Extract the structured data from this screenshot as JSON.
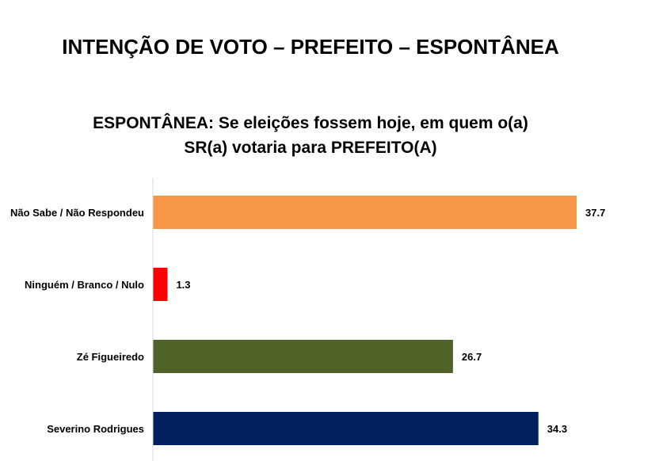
{
  "page": {
    "title": "INTENÇÃO DE VOTO – PREFEITO – ESPONTÂNEA"
  },
  "chart_data": {
    "type": "bar",
    "orientation": "horizontal",
    "title_lines": [
      "ESPONTÂNEA: Se eleições fossem hoje, em quem o(a)",
      "SR(a) votaria para PREFEITO(A)"
    ],
    "categories": [
      "Não Sabe / Não Respondeu",
      "Ninguém / Branco / Nulo",
      "Zé Figueiredo",
      "Severino Rodrigues"
    ],
    "values": [
      37.7,
      1.3,
      26.7,
      34.3
    ],
    "value_labels": [
      "37.7",
      "1.3",
      "26.7",
      "34.3"
    ],
    "colors": [
      "#F79646",
      "#FF0000",
      "#4F6228",
      "#002060"
    ],
    "xlim": [
      0,
      37.7
    ],
    "grid": false,
    "legend": "none"
  }
}
